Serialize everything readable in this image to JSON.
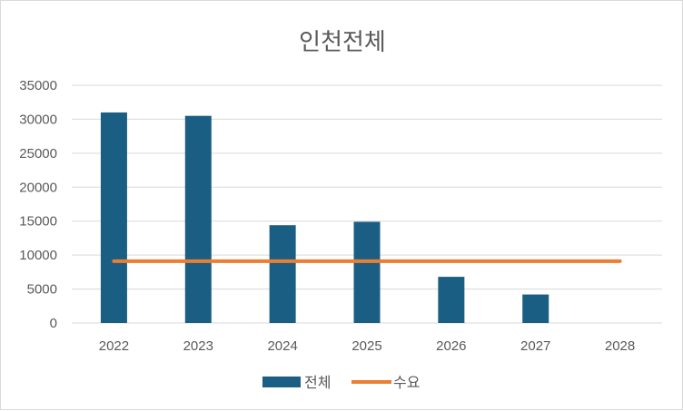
{
  "chart_data": {
    "type": "bar",
    "title": "인천전체",
    "categories": [
      "2022",
      "2023",
      "2024",
      "2025",
      "2026",
      "2027",
      "2028"
    ],
    "series": [
      {
        "name": "전체",
        "kind": "bar",
        "color": "#1a5f83",
        "values": [
          31000,
          30500,
          14400,
          14900,
          6800,
          4200,
          0
        ]
      },
      {
        "name": "수요",
        "kind": "line",
        "color": "#ed7d31",
        "values": [
          9100,
          9100,
          9100,
          9100,
          9100,
          9100,
          9100
        ]
      }
    ],
    "ylim": [
      0,
      35000
    ],
    "yticks": [
      "0",
      "5000",
      "10000",
      "15000",
      "20000",
      "25000",
      "30000",
      "35000"
    ],
    "grid": true,
    "legend": "bottom",
    "gridline_color": "#d9d9d9"
  }
}
